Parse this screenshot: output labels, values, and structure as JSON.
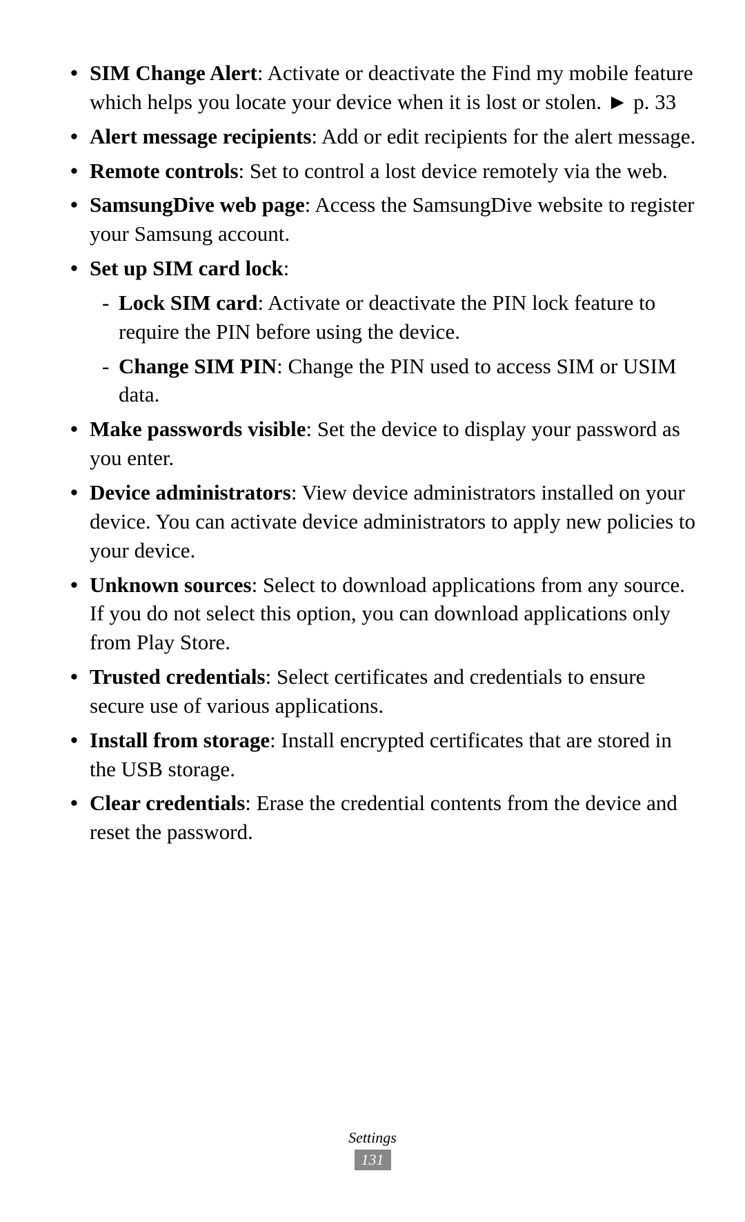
{
  "items": [
    {
      "title": "SIM Change Alert",
      "text": ": Activate or deactivate the Find my mobile feature which helps you locate your device when it is lost or stolen. ",
      "ref": "► p. 33"
    },
    {
      "title": "Alert message recipients",
      "text": ": Add or edit recipients for the alert message."
    },
    {
      "title": "Remote controls",
      "text": ": Set to control a lost device remotely via the web."
    },
    {
      "title": "SamsungDive web page",
      "text": ": Access the SamsungDive website to register your Samsung account."
    },
    {
      "title": "Set up SIM card lock",
      "text": ":",
      "sub": [
        {
          "title": "Lock SIM card",
          "text": ": Activate or deactivate the PIN lock feature to require the PIN before using the device."
        },
        {
          "title": "Change SIM PIN",
          "text": ": Change the PIN used to access SIM or USIM data."
        }
      ]
    },
    {
      "title": "Make passwords visible",
      "text": ": Set the device to display your password as you enter."
    },
    {
      "title": "Device administrators",
      "text": ": View device administrators installed on your device. You can activate device administrators to apply new policies to your device."
    },
    {
      "title": "Unknown sources",
      "text": ": Select to download applications from any source. If you do not select this option, you can download applications only from Play Store."
    },
    {
      "title": "Trusted credentials",
      "text": ": Select certificates and credentials to ensure secure use of various applications."
    },
    {
      "title": "Install from storage",
      "text": ": Install encrypted certificates that are stored in the USB storage."
    },
    {
      "title": "Clear credentials",
      "text": ": Erase the credential contents from the device and reset the password."
    }
  ],
  "footer": {
    "section": "Settings",
    "page": "131"
  }
}
